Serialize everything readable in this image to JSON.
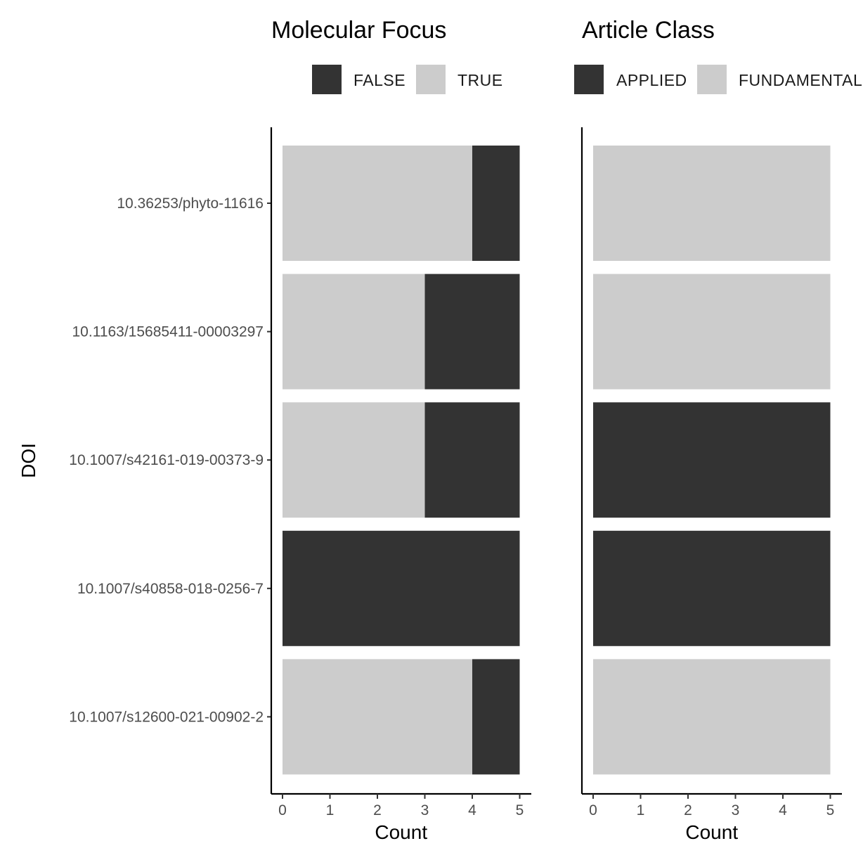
{
  "chart_data": [
    {
      "type": "bar",
      "orientation": "horizontal",
      "stacked": true,
      "title": "Molecular Focus",
      "xlabel": "Count",
      "ylabel": "DOI",
      "xlim": [
        0,
        5
      ],
      "xticks": [
        "0",
        "1",
        "2",
        "3",
        "4",
        "5"
      ],
      "grid": false,
      "legend_position": "top",
      "categories": [
        "10.36253/phyto-11616",
        "10.1163/15685411-00003297",
        "10.1007/s42161-019-00373-9",
        "10.1007/s40858-018-0256-7",
        "10.1007/s12600-021-00902-2"
      ],
      "series": [
        {
          "name": "FALSE",
          "color": "#333333",
          "values": [
            1,
            2,
            2,
            5,
            1
          ]
        },
        {
          "name": "TRUE",
          "color": "#cccccc",
          "values": [
            4,
            3,
            3,
            0,
            4
          ]
        }
      ]
    },
    {
      "type": "bar",
      "orientation": "horizontal",
      "stacked": true,
      "title": "Article Class",
      "xlabel": "Count",
      "xlim": [
        0,
        5
      ],
      "xticks": [
        "0",
        "1",
        "2",
        "3",
        "4",
        "5"
      ],
      "grid": false,
      "legend_position": "top",
      "categories": [
        "10.36253/phyto-11616",
        "10.1163/15685411-00003297",
        "10.1007/s42161-019-00373-9",
        "10.1007/s40858-018-0256-7",
        "10.1007/s12600-021-00902-2"
      ],
      "series": [
        {
          "name": "APPLIED",
          "color": "#333333",
          "values": [
            0,
            0,
            5,
            5,
            0
          ]
        },
        {
          "name": "FUNDAMENTAL",
          "color": "#cccccc",
          "values": [
            5,
            5,
            0,
            0,
            5
          ]
        }
      ]
    }
  ]
}
